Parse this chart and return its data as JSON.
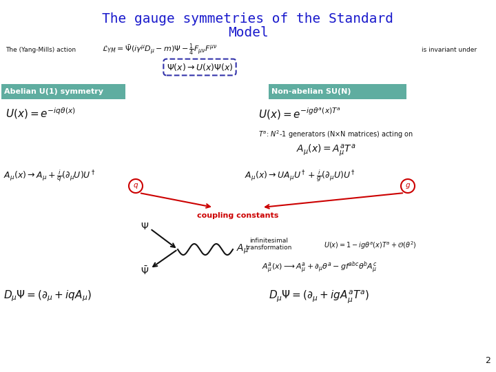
{
  "title_line1": "The gauge symmetries of the Standard",
  "title_line2": "Model",
  "title_color": "#1a1aCC",
  "title_fontsize": 15,
  "bg_color": "#FFFFFF",
  "slide_number": "2",
  "teal_color": "#5FADA0",
  "red_color": "#CC0000",
  "dark_color": "#111111",
  "yang_mills_label": "The (Yang-Mills) action",
  "yang_mills_eq": "$\\mathcal{L}_{YM} = \\bar{\\Psi}(i\\gamma^\\mu D_\\mu - m)\\Psi - \\frac{1}{4}F_{\\mu\\nu}F^{\\mu\\nu}$",
  "invariant_text": "is invariant under",
  "transformation": "$\\Psi(x) \\rightarrow U(x)\\Psi(x)$",
  "abelian_label": "Abelian U(1) symmetry",
  "nonabelian_label": "Non-abelian SU(N)",
  "U_abelian": "$U(x) = e^{-iq\\theta(x)}$",
  "U_nonabelian": "$U(x) = e^{-ig\\theta^a(x)T^a}$",
  "Ta_text": "$T^a$: $N^2$-1 generators (N×N matrices) acting on",
  "A_expand": "$A_\\mu(x) = A^a_\\mu T^a$",
  "A_transform_left": "$A_\\mu(x) \\rightarrow A_\\mu + \\frac{i}{q}(\\partial_\\mu U)U^\\dagger$",
  "A_transform_right": "$A_\\mu(x) \\rightarrow UA_\\mu U^\\dagger + \\frac{i}{g}(\\partial_\\mu U)U^\\dagger$",
  "coupling_text": "coupling constants",
  "infinitesimal_label": "infinitesimal\ntransformation",
  "U_infinitesimal": "$U(x) = 1 - ig\\theta^a(x)T^a + \\mathcal{O}(\\theta^2)$",
  "A_gauge": "$A^a_\\mu(x) \\longrightarrow A^a_\\mu + \\partial_\\mu\\theta^a - gf^{abc}\\theta^b A^c_\\mu$",
  "D_abelian": "$D_\\mu\\Psi = (\\partial_\\mu + iqA_\\mu)$",
  "D_nonabelian": "$D_\\mu\\Psi = (\\partial_\\mu + igA^a_\\mu T^a)$",
  "Psi_upper": "$\\Psi$",
  "Psi_lower": "$\\bar{\\Psi}$",
  "A_mu_label": "$A_\\mu$"
}
